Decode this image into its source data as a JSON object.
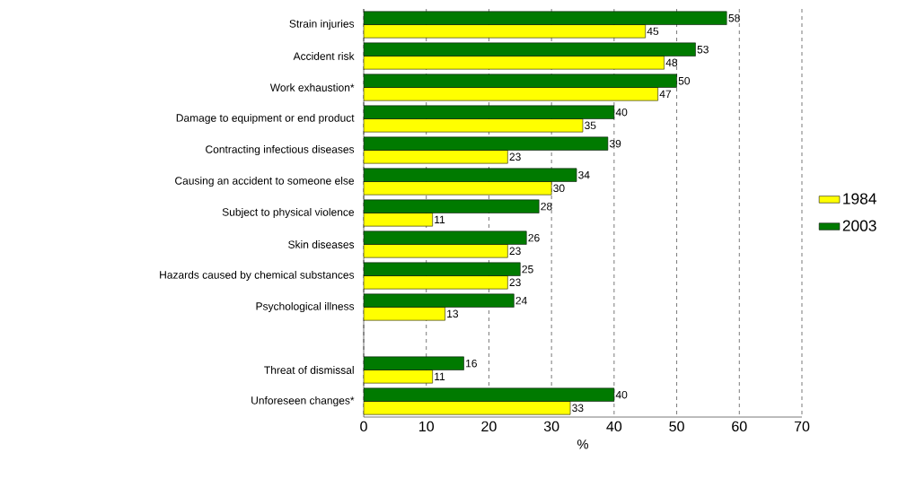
{
  "chart_data": {
    "type": "bar",
    "orientation": "horizontal",
    "xlabel": "%",
    "categories": [
      "Strain injuries",
      "Accident risk",
      "Work exhaustion*",
      "Damage to equipment or end product",
      "Contracting infectious diseases",
      "Causing an accident to someone else",
      "Subject to physical violence",
      "Skin diseases",
      "Hazards caused by chemical substances",
      "Psychological illness",
      null,
      "Threat of dismissal",
      "Unforeseen changes*"
    ],
    "series": [
      {
        "name": "1984",
        "color": "#ffff00",
        "values": [
          45,
          48,
          47,
          35,
          23,
          30,
          11,
          23,
          23,
          13,
          null,
          11,
          33
        ]
      },
      {
        "name": "2003",
        "color": "#007a00",
        "values": [
          58,
          53,
          50,
          40,
          39,
          34,
          28,
          26,
          25,
          24,
          null,
          16,
          40
        ]
      }
    ],
    "xlim": [
      0,
      70
    ],
    "xticks": [
      0,
      10,
      20,
      30,
      40,
      50,
      60,
      70
    ],
    "grid": "x",
    "legend": "right",
    "data_labels": true
  }
}
